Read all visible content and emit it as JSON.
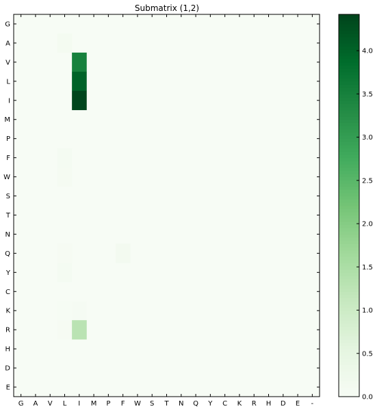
{
  "chart_data": [
    {
      "type": "heatmap",
      "title": "Submatrix (1,2)",
      "xlabel": "",
      "ylabel": "",
      "x_categories": [
        "G",
        "A",
        "V",
        "L",
        "I",
        "M",
        "P",
        "F",
        "W",
        "S",
        "T",
        "N",
        "Q",
        "Y",
        "C",
        "K",
        "R",
        "H",
        "D",
        "E",
        "-"
      ],
      "y_categories": [
        "G",
        "A",
        "V",
        "L",
        "I",
        "M",
        "P",
        "F",
        "W",
        "S",
        "T",
        "N",
        "Q",
        "Y",
        "C",
        "K",
        "R",
        "H",
        "D",
        "E"
      ],
      "background_value": 0.0,
      "cells": [
        {
          "x": "L",
          "y": "A",
          "value": 0.1
        },
        {
          "x": "I",
          "y": "V",
          "value": 3.5
        },
        {
          "x": "I",
          "y": "L",
          "value": 4.0
        },
        {
          "x": "I",
          "y": "I",
          "value": 4.4
        },
        {
          "x": "L",
          "y": "F",
          "value": 0.08
        },
        {
          "x": "L",
          "y": "W",
          "value": 0.07
        },
        {
          "x": "L",
          "y": "Q",
          "value": 0.04
        },
        {
          "x": "F",
          "y": "Q",
          "value": 0.12
        },
        {
          "x": "L",
          "y": "Y",
          "value": 0.08
        },
        {
          "x": "L",
          "y": "K",
          "value": 0.03
        },
        {
          "x": "I",
          "y": "K",
          "value": 0.06
        },
        {
          "x": "L",
          "y": "R",
          "value": 0.04
        },
        {
          "x": "I",
          "y": "R",
          "value": 1.3
        }
      ],
      "colormap": "Greens",
      "color_low": "#f7fcf5",
      "color_high": "#00441b",
      "colorbar": {
        "vmin": 0.0,
        "vmax": 4.42,
        "ticks": [
          0.0,
          0.5,
          1.0,
          1.5,
          2.0,
          2.5,
          3.0,
          3.5,
          4.0
        ],
        "tick_labels": [
          "0.0",
          "0.5",
          "1.0",
          "1.5",
          "2.0",
          "2.5",
          "3.0",
          "3.5",
          "4.0"
        ]
      },
      "grid": false
    }
  ]
}
